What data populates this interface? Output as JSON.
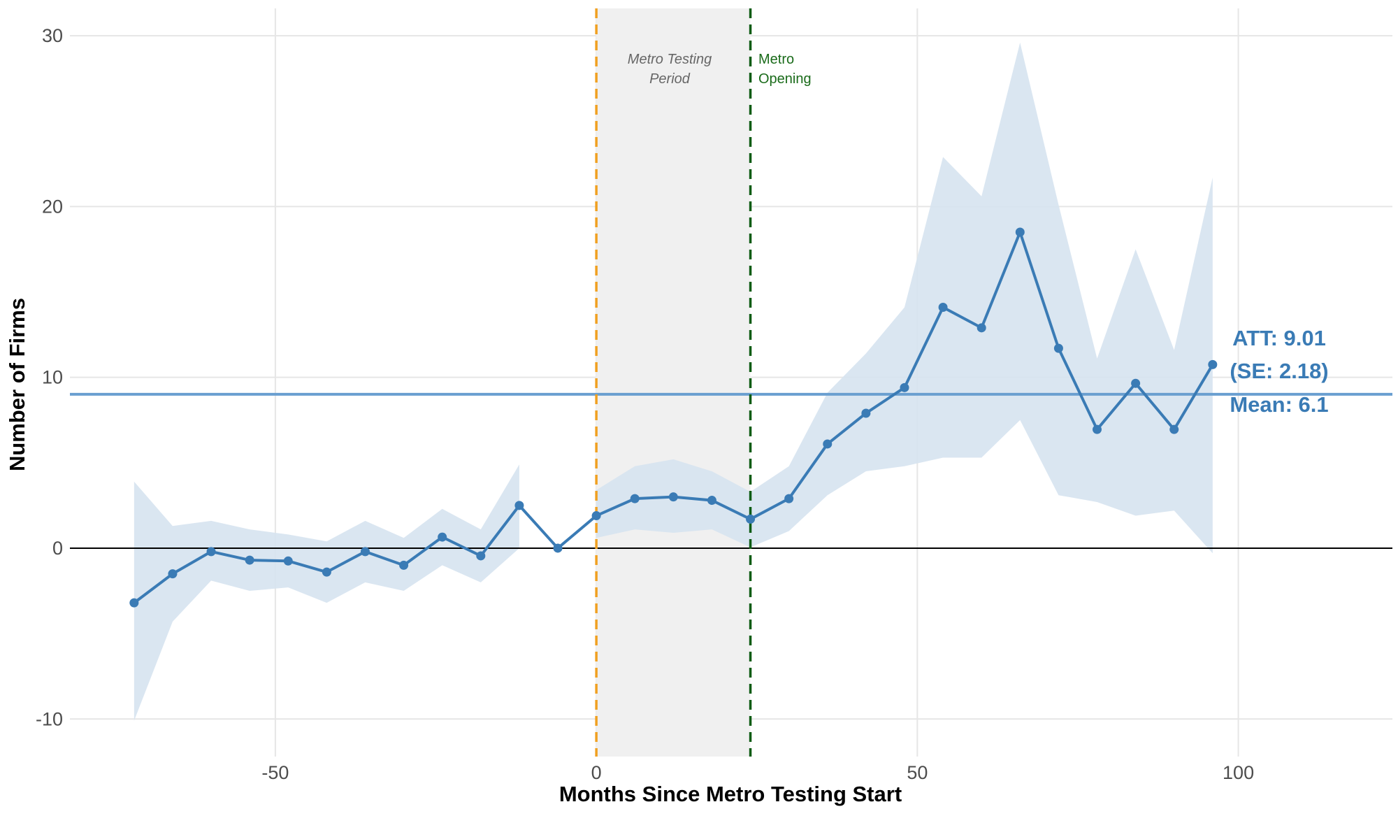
{
  "chart_data": {
    "type": "line",
    "title": "",
    "xlabel": "Months Since Metro Testing Start",
    "ylabel": "Number of Firms",
    "xlim": [
      -82,
      124
    ],
    "ylim": [
      -12.2,
      31.6
    ],
    "x_ticks": [
      -50,
      0,
      50,
      100
    ],
    "x_tick_labels": [
      "-50",
      "0",
      "50",
      "100"
    ],
    "y_ticks": [
      -10,
      0,
      10,
      20,
      30
    ],
    "y_tick_labels": [
      "-10",
      "0",
      "10",
      "20",
      "30"
    ],
    "grid": true,
    "legend": "none",
    "series": [
      {
        "x": [
          -72,
          -66,
          -60,
          -54,
          -48,
          -42,
          -36,
          -30,
          -24,
          -18,
          -12,
          -6,
          0,
          6,
          12,
          18,
          24,
          30,
          36,
          42,
          48,
          54,
          60,
          66,
          72,
          78,
          84,
          90,
          96
        ],
        "y": [
          -3.2,
          -1.5,
          -0.2,
          -0.7,
          -0.75,
          -1.4,
          -0.2,
          -1.0,
          0.65,
          -0.45,
          2.5,
          0.0,
          1.9,
          2.9,
          3.0,
          2.8,
          1.7,
          2.9,
          6.1,
          7.9,
          9.4,
          14.1,
          12.9,
          18.5,
          11.7,
          6.95,
          9.65,
          6.95,
          10.75
        ],
        "ci_lower": [
          -10.1,
          -4.3,
          -1.9,
          -2.5,
          -2.3,
          -3.2,
          -2.0,
          -2.5,
          -1.0,
          -2.0,
          0.0,
          null,
          0.6,
          1.1,
          0.9,
          1.1,
          0.05,
          1.0,
          3.1,
          4.5,
          4.8,
          5.3,
          5.3,
          7.5,
          3.1,
          2.7,
          1.9,
          2.2,
          -0.3
        ],
        "ci_upper": [
          3.9,
          1.3,
          1.6,
          1.1,
          0.8,
          0.4,
          1.6,
          0.6,
          2.3,
          1.1,
          4.9,
          null,
          3.4,
          4.8,
          5.2,
          4.5,
          3.3,
          4.8,
          9.1,
          11.4,
          14.1,
          22.9,
          20.6,
          29.6,
          20.1,
          11.1,
          17.5,
          11.6,
          21.7
        ],
        "color": "#3a7bb5",
        "ci_color": "#d6e3f0"
      }
    ],
    "reference_lines": {
      "zero_y": 0,
      "att_mean_y": 9.01,
      "att_color": "#6a9fd0",
      "testing_start_x": 0,
      "testing_start_color": "#f0a020",
      "opening_x": 24,
      "opening_color": "#0e5c14"
    },
    "shaded_region": {
      "x0": 0,
      "x1": 24,
      "color": "#f0f0f0"
    },
    "annotations": {
      "testing_period": [
        "Metro Testing",
        "Period"
      ],
      "opening": [
        "Metro",
        "Opening"
      ],
      "att": [
        "ATT: 9.01",
        "(SE: 2.18)",
        "Mean: 6.1"
      ]
    }
  }
}
